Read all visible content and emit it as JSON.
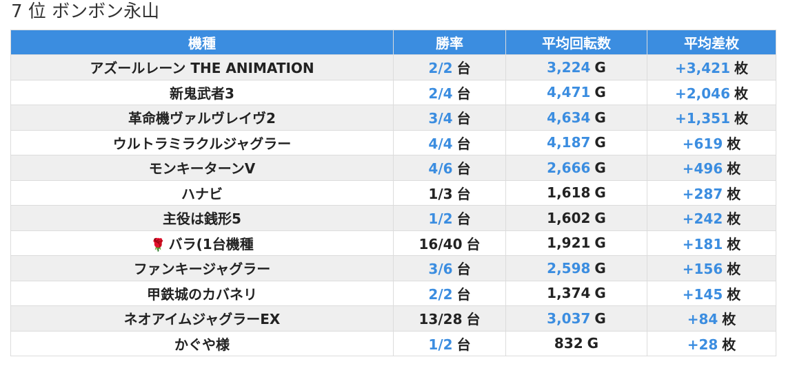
{
  "heading": "7 位 ボンボン永山",
  "columns": [
    "機種",
    "勝率",
    "平均回転数",
    "平均差枚"
  ],
  "units": {
    "win": "台",
    "spin": "G",
    "diff": "枚"
  },
  "colors": {
    "header_bg": "#3b8de0",
    "highlight": "#3b8de0",
    "text": "#222222"
  },
  "rows": [
    {
      "icon": "",
      "name": "アズールレーン THE ANIMATION",
      "win": "2/2",
      "spin": "3,224",
      "diff": "+3,421",
      "win_hl": true,
      "spin_hl": true
    },
    {
      "icon": "",
      "name": "新鬼武者3",
      "win": "2/4",
      "spin": "4,471",
      "diff": "+2,046",
      "win_hl": true,
      "spin_hl": true
    },
    {
      "icon": "",
      "name": "革命機ヴァルヴレイヴ2",
      "win": "3/4",
      "spin": "4,634",
      "diff": "+1,351",
      "win_hl": true,
      "spin_hl": true
    },
    {
      "icon": "",
      "name": "ウルトラミラクルジャグラー",
      "win": "4/4",
      "spin": "4,187",
      "diff": "+619",
      "win_hl": true,
      "spin_hl": true
    },
    {
      "icon": "",
      "name": "モンキーターンV",
      "win": "4/6",
      "spin": "2,666",
      "diff": "+496",
      "win_hl": true,
      "spin_hl": true
    },
    {
      "icon": "",
      "name": "ハナビ",
      "win": "1/3",
      "spin": "1,618",
      "diff": "+287",
      "win_hl": false,
      "spin_hl": false
    },
    {
      "icon": "",
      "name": "主役は銭形5",
      "win": "1/2",
      "spin": "1,602",
      "diff": "+242",
      "win_hl": true,
      "spin_hl": false
    },
    {
      "icon": "rose-icon",
      "name": "バラ(1台機種",
      "win": "16/40",
      "spin": "1,921",
      "diff": "+181",
      "win_hl": false,
      "spin_hl": false
    },
    {
      "icon": "",
      "name": "ファンキージャグラー",
      "win": "3/6",
      "spin": "2,598",
      "diff": "+156",
      "win_hl": true,
      "spin_hl": true
    },
    {
      "icon": "",
      "name": "甲鉄城のカバネリ",
      "win": "2/2",
      "spin": "1,374",
      "diff": "+145",
      "win_hl": true,
      "spin_hl": false
    },
    {
      "icon": "",
      "name": "ネオアイムジャグラーEX",
      "win": "13/28",
      "spin": "3,037",
      "diff": "+84",
      "win_hl": false,
      "spin_hl": true
    },
    {
      "icon": "",
      "name": "かぐや様",
      "win": "1/2",
      "spin": "832",
      "diff": "+28",
      "win_hl": true,
      "spin_hl": false
    }
  ]
}
